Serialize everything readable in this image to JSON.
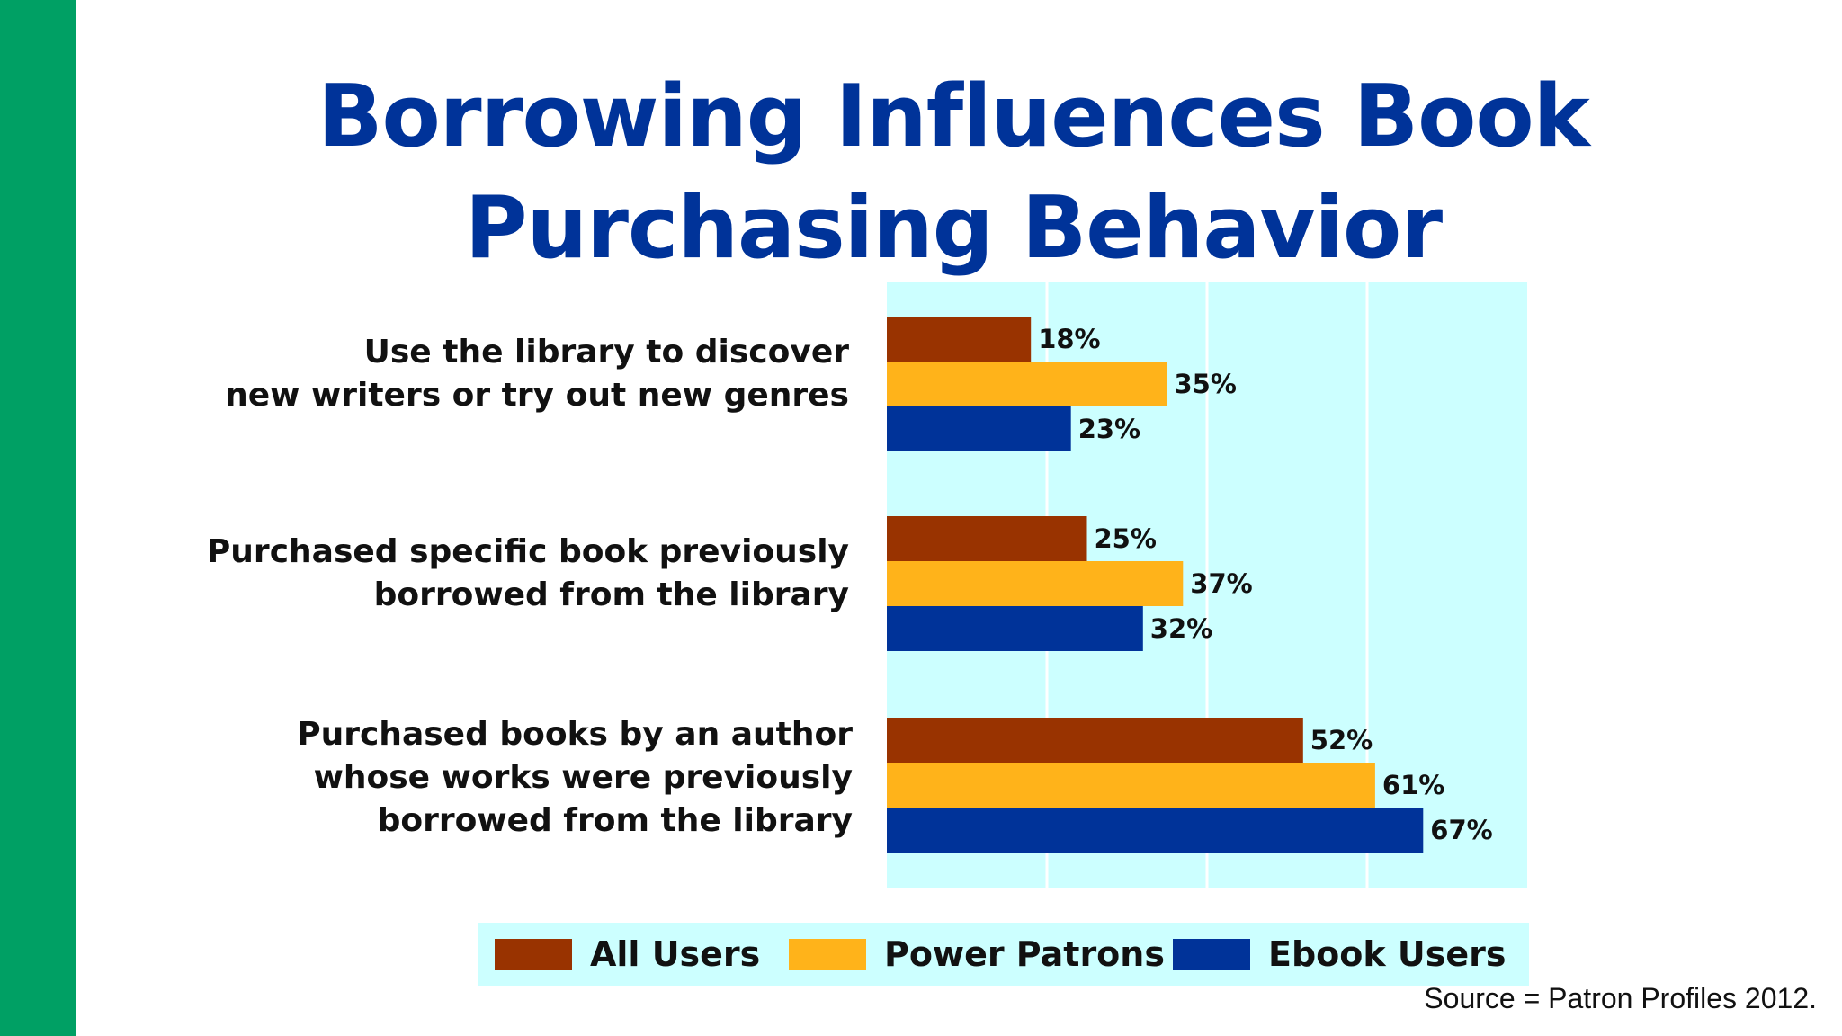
{
  "colors": {
    "accent_green": "#00a064",
    "title": "#003399",
    "plot_background": "#ccffff",
    "gridline": "#ffffff"
  },
  "source": "Source = Patron Profiles 2012.",
  "chart_data": {
    "type": "bar",
    "orientation": "horizontal",
    "title": "Borrowing Influences Book Purchasing Behavior",
    "title_lines": [
      "Borrowing Influences Book",
      "Purchasing Behavior"
    ],
    "categories": [
      "Use the library to discover new writers or try out new genres",
      "Purchased specific book previously borrowed from the library",
      "Purchased books by an author whose works were previously borrowed from the library"
    ],
    "category_lines": [
      [
        "Use the library to discover",
        "new writers or try out new genres"
      ],
      [
        "Purchased specific book previously",
        "borrowed from the library"
      ],
      [
        "Purchased books by an author",
        "whose works were previously",
        "borrowed from the library"
      ]
    ],
    "series": [
      {
        "name": "All Users",
        "color": "#993300",
        "values": [
          18,
          25,
          52
        ]
      },
      {
        "name": "Power Patrons",
        "color": "#ffb31a",
        "values": [
          35,
          37,
          61
        ]
      },
      {
        "name": "Ebook Users",
        "color": "#003399",
        "values": [
          23,
          32,
          67
        ]
      }
    ],
    "value_suffix": "%",
    "xlim": [
      0,
      80
    ],
    "gridline_values": [
      20,
      40,
      60
    ],
    "grid": true,
    "axis_tick_labels_shown": false,
    "legend": "bottom"
  }
}
